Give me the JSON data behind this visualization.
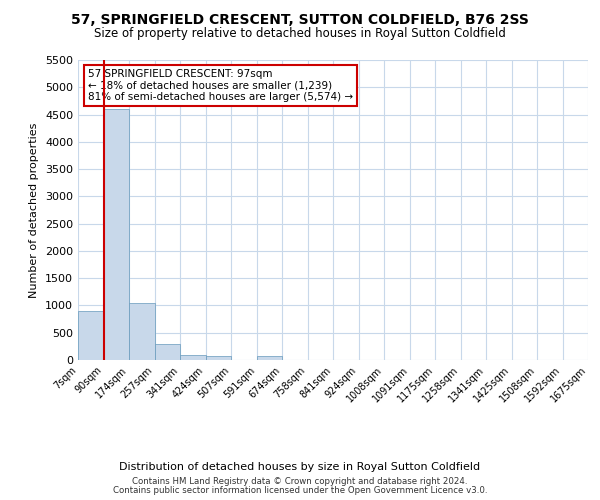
{
  "title_line1": "57, SPRINGFIELD CRESCENT, SUTTON COLDFIELD, B76 2SS",
  "title_line2": "Size of property relative to detached houses in Royal Sutton Coldfield",
  "xlabel": "Distribution of detached houses by size in Royal Sutton Coldfield",
  "ylabel": "Number of detached properties",
  "footer_line1": "Contains HM Land Registry data © Crown copyright and database right 2024.",
  "footer_line2": "Contains public sector information licensed under the Open Government Licence v3.0.",
  "annotation_line1": "57 SPRINGFIELD CRESCENT: 97sqm",
  "annotation_line2": "← 18% of detached houses are smaller (1,239)",
  "annotation_line3": "81% of semi-detached houses are larger (5,574) →",
  "property_size_sqm": 97,
  "bar_color": "#c8d8ea",
  "bar_edge_color": "#6699bb",
  "marker_line_color": "#cc0000",
  "annotation_box_edge_color": "#cc0000",
  "background_color": "#ffffff",
  "grid_color": "#c8d8ea",
  "bins": [
    7,
    90,
    174,
    257,
    341,
    424,
    507,
    591,
    674,
    758,
    841,
    924,
    1008,
    1091,
    1175,
    1258,
    1341,
    1425,
    1508,
    1592,
    1675
  ],
  "bin_labels": [
    "7sqm",
    "90sqm",
    "174sqm",
    "257sqm",
    "341sqm",
    "424sqm",
    "507sqm",
    "591sqm",
    "674sqm",
    "758sqm",
    "841sqm",
    "924sqm",
    "1008sqm",
    "1091sqm",
    "1175sqm",
    "1258sqm",
    "1341sqm",
    "1425sqm",
    "1508sqm",
    "1592sqm",
    "1675sqm"
  ],
  "bar_heights": [
    900,
    4600,
    1050,
    300,
    90,
    70,
    0,
    65,
    0,
    0,
    0,
    0,
    0,
    0,
    0,
    0,
    0,
    0,
    0,
    0
  ],
  "ylim": [
    0,
    5500
  ],
  "yticks": [
    0,
    500,
    1000,
    1500,
    2000,
    2500,
    3000,
    3500,
    4000,
    4500,
    5000,
    5500
  ]
}
